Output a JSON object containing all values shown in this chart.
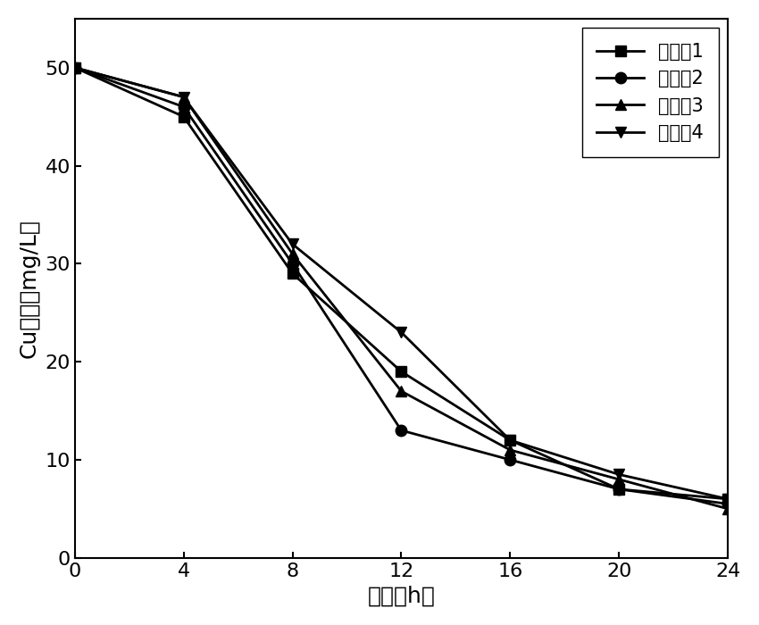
{
  "x": [
    0,
    4,
    8,
    12,
    16,
    20,
    24
  ],
  "series": [
    {
      "label": "实施例1",
      "y": [
        50,
        45,
        29,
        19,
        12,
        7,
        6
      ],
      "marker": "s",
      "color": "#000000"
    },
    {
      "label": "实施例2",
      "y": [
        50,
        46,
        30,
        13,
        10,
        7,
        5.5
      ],
      "marker": "o",
      "color": "#000000"
    },
    {
      "label": "实施例3",
      "y": [
        50,
        47,
        31,
        17,
        11,
        8,
        5
      ],
      "marker": "^",
      "color": "#000000"
    },
    {
      "label": "实施例4",
      "y": [
        50,
        47,
        32,
        23,
        12,
        8.5,
        6
      ],
      "marker": "v",
      "color": "#000000"
    }
  ],
  "xlabel": "时间（h）",
  "ylabel": "Cu浓度（mg/L）",
  "xlim": [
    0,
    24
  ],
  "ylim": [
    0,
    55
  ],
  "xticks": [
    0,
    4,
    8,
    12,
    16,
    20,
    24
  ],
  "yticks": [
    0,
    10,
    20,
    30,
    40,
    50
  ],
  "legend_loc": "upper right",
  "axis_fontsize": 18,
  "tick_fontsize": 16,
  "legend_fontsize": 15,
  "linewidth": 2.0,
  "markersize": 9,
  "background_color": "#ffffff"
}
